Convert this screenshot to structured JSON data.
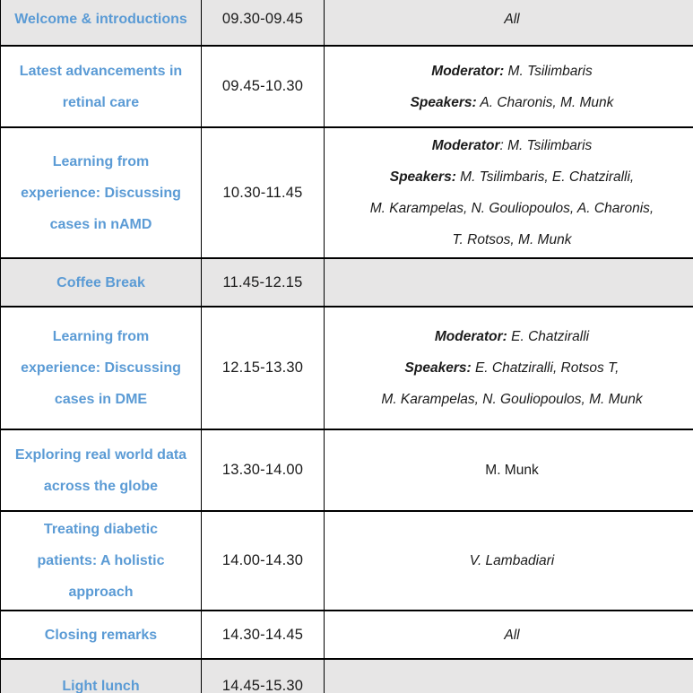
{
  "colors": {
    "title_blue": "#5B9BD5",
    "shaded_row_bg": "#E7E6E6",
    "border": "#000000",
    "text": "#1A1A1A"
  },
  "table": {
    "columns": [
      "session",
      "time",
      "speakers"
    ],
    "rows": [
      {
        "title_lines": [
          "Welcome & introductions"
        ],
        "time": "09.30-09.45",
        "shaded": true,
        "lines": [
          {
            "italic": true,
            "segments": [
              {
                "text": "All",
                "bold": false
              }
            ]
          }
        ]
      },
      {
        "title_lines": [
          "Latest advancements in",
          "retinal care"
        ],
        "time": "09.45-10.30",
        "shaded": false,
        "lines": [
          {
            "italic": true,
            "segments": [
              {
                "text": "Moderator:",
                "bold": true
              },
              {
                "text": " M. Tsilimbaris",
                "bold": false
              }
            ]
          },
          {
            "italic": true,
            "segments": [
              {
                "text": "Speakers:",
                "bold": true
              },
              {
                "text": " A. Charonis, M. Munk",
                "bold": false
              }
            ]
          }
        ]
      },
      {
        "title_lines": [
          "Learning from",
          "experience: Discussing",
          "cases in nAMD"
        ],
        "time": "10.30-11.45",
        "shaded": false,
        "lines": [
          {
            "italic": true,
            "segments": [
              {
                "text": "Moderator",
                "bold": true
              },
              {
                "text": ": M. Tsilimbaris",
                "bold": false
              }
            ]
          },
          {
            "italic": true,
            "segments": [
              {
                "text": "Speakers:",
                "bold": true
              },
              {
                "text": " M. Tsilimbaris, E. Chatziralli,",
                "bold": false
              }
            ]
          },
          {
            "italic": true,
            "segments": [
              {
                "text": "M. Karampelas, N. Gouliopoulos, A. Charonis,",
                "bold": false
              }
            ]
          },
          {
            "italic": true,
            "segments": [
              {
                "text": "T. Rotsos, M. Munk",
                "bold": false
              }
            ]
          }
        ]
      },
      {
        "title_lines": [
          "Coffee Break"
        ],
        "time": "11.45-12.15",
        "shaded": true,
        "lines": []
      },
      {
        "title_lines": [
          "Learning from",
          "experience: Discussing",
          "cases in DME"
        ],
        "time": "12.15-13.30",
        "shaded": false,
        "lines": [
          {
            "italic": true,
            "segments": [
              {
                "text": "Moderator:",
                "bold": true
              },
              {
                "text": " E. Chatziralli",
                "bold": false
              }
            ]
          },
          {
            "italic": true,
            "segments": [
              {
                "text": "Speakers:",
                "bold": true
              },
              {
                "text": " E. Chatziralli, Rotsos T,",
                "bold": false
              }
            ]
          },
          {
            "italic": true,
            "segments": [
              {
                "text": "M. Karampelas, N. Gouliopoulos, M. Munk",
                "bold": false
              }
            ]
          }
        ]
      },
      {
        "title_lines": [
          "Exploring real world data",
          "across the globe"
        ],
        "time": "13.30-14.00",
        "shaded": false,
        "lines": [
          {
            "italic": false,
            "segments": [
              {
                "text": "M. Munk",
                "bold": false
              }
            ]
          }
        ]
      },
      {
        "title_lines": [
          "Treating diabetic",
          "patients: A holistic",
          "approach"
        ],
        "time": "14.00-14.30",
        "shaded": false,
        "lines": [
          {
            "italic": true,
            "segments": [
              {
                "text": "V. Lambadiari",
                "bold": false
              }
            ]
          }
        ]
      },
      {
        "title_lines": [
          "Closing remarks"
        ],
        "time": "14.30-14.45",
        "shaded": false,
        "lines": [
          {
            "italic": true,
            "segments": [
              {
                "text": "All",
                "bold": false
              }
            ]
          }
        ]
      },
      {
        "title_lines": [
          "Light lunch"
        ],
        "time": "14.45-15.30",
        "shaded": true,
        "lines": []
      }
    ]
  }
}
